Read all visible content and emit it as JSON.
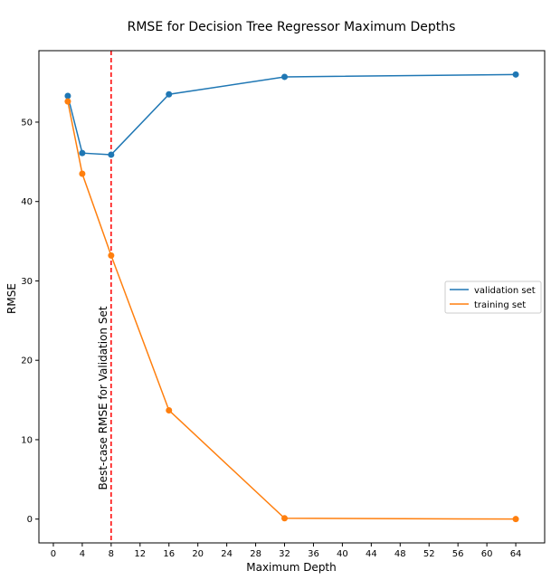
{
  "chart_data": {
    "type": "line",
    "title": "RMSE for Decision Tree Regressor Maximum Depths",
    "xlabel": "Maximum Depth",
    "ylabel": "RMSE",
    "xlim": [
      -2,
      68
    ],
    "ylim": [
      -3,
      59
    ],
    "xticks": [
      0,
      4,
      8,
      12,
      16,
      20,
      24,
      28,
      32,
      36,
      40,
      44,
      48,
      52,
      56,
      60,
      64
    ],
    "yticks": [
      0,
      10,
      20,
      30,
      40,
      50
    ],
    "grid": false,
    "legend_position": "center-right",
    "series": [
      {
        "name": "validation set",
        "color": "#1f77b4",
        "x": [
          2,
          4,
          8,
          16,
          32,
          64
        ],
        "y": [
          53.3,
          46.1,
          45.9,
          53.5,
          55.7,
          56.0
        ]
      },
      {
        "name": "training set",
        "color": "#ff7f0e",
        "x": [
          2,
          4,
          8,
          16,
          32,
          64
        ],
        "y": [
          52.6,
          43.5,
          33.2,
          13.7,
          0.1,
          0.0
        ]
      }
    ],
    "annotation": {
      "text": "Best-case RMSE for Validation Set",
      "x": 8,
      "line_color": "#ff0000",
      "line_style": "dashed"
    }
  }
}
